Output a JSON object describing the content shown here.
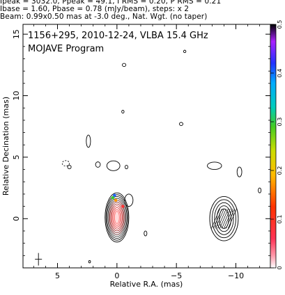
{
  "header": {
    "line1": "Ipeak = 3032.0, Ppeak = 49.1, I RMS = 0.20, P RMS = 0.21",
    "line2": "Ibase = 1.60, Pbase = 0.78 (mJy/beam), steps: x 2",
    "line3": "Beam: 0.99x0.50 mas at -3.0 deg., Nat. Wgt. (no taper)"
  },
  "chart_data": {
    "type": "contour",
    "title": "1156+295, 2010-12-24, VLBA 15.4 GHz",
    "subtitle": "MOJAVE Program",
    "xlabel": "Relative R.A. (mas)",
    "ylabel": "Relative Decination (mas)",
    "xlim": [
      7.9,
      -12.9
    ],
    "ylim": [
      -4.0,
      15.8
    ],
    "x_ticks": [
      5,
      0,
      -5,
      -10
    ],
    "x_tick_labels": [
      "5",
      "0",
      "−5",
      "−10"
    ],
    "y_ticks": [
      0,
      5,
      10,
      15
    ],
    "y_tick_labels": [
      "0",
      "5",
      "10",
      "15"
    ],
    "colorbar": {
      "range": [
        0,
        0.5
      ],
      "ticks": [
        0,
        0.1,
        0.2,
        0.3,
        0.4,
        0.5
      ],
      "tick_labels": [
        "0",
        "0.1",
        "0.2",
        "0.3",
        "0.4",
        "0.5"
      ]
    },
    "core_contours": {
      "center": [
        0.0,
        0.1
      ],
      "radii": [
        [
          1.0,
          2.0
        ],
        [
          0.92,
          1.85
        ],
        [
          0.84,
          1.7
        ],
        [
          0.76,
          1.55
        ],
        [
          0.68,
          1.4
        ],
        [
          0.6,
          1.25
        ],
        [
          0.52,
          1.1
        ],
        [
          0.44,
          0.95
        ],
        [
          0.36,
          0.8
        ],
        [
          0.28,
          0.65
        ],
        [
          0.2,
          0.5
        ]
      ]
    },
    "jet_contours": {
      "center": [
        -9.0,
        0.0
      ],
      "radii": [
        [
          1.2,
          1.8
        ],
        [
          1.0,
          1.55
        ],
        [
          0.8,
          1.3
        ],
        [
          0.6,
          1.05
        ],
        [
          0.4,
          0.8
        ]
      ]
    },
    "small_contours": [
      {
        "x": 0.3,
        "y": 4.3,
        "rx": 0.55,
        "ry": 0.4,
        "dashed": false
      },
      {
        "x": -1.0,
        "y": 1.5,
        "rx": 0.35,
        "ry": 0.5,
        "dashed": false
      },
      {
        "x": 2.4,
        "y": 6.3,
        "rx": 0.18,
        "ry": 0.5,
        "dashed": false
      },
      {
        "x": 1.6,
        "y": 4.4,
        "rx": 0.2,
        "ry": 0.22,
        "dashed": false
      },
      {
        "x": 4.3,
        "y": 4.5,
        "rx": 0.3,
        "ry": 0.22,
        "dashed": true
      },
      {
        "x": -0.5,
        "y": 8.7,
        "rx": 0.1,
        "ry": 0.12,
        "dashed": false
      },
      {
        "x": -0.6,
        "y": 12.5,
        "rx": 0.15,
        "ry": 0.13,
        "dashed": false
      },
      {
        "x": -5.4,
        "y": 7.7,
        "rx": 0.15,
        "ry": 0.13,
        "dashed": false
      },
      {
        "x": -5.7,
        "y": 13.6,
        "rx": 0.1,
        "ry": 0.1,
        "dashed": false
      },
      {
        "x": -0.8,
        "y": 4.2,
        "rx": 0.12,
        "ry": 0.15,
        "dashed": false
      },
      {
        "x": -2.4,
        "y": -1.2,
        "rx": 0.12,
        "ry": 0.2,
        "dashed": false
      },
      {
        "x": -8.2,
        "y": 4.3,
        "rx": 0.6,
        "ry": 0.3,
        "dashed": false
      },
      {
        "x": -10.3,
        "y": 3.8,
        "rx": 0.2,
        "ry": 0.4,
        "dashed": false
      },
      {
        "x": -12.0,
        "y": 2.3,
        "rx": 0.12,
        "ry": 0.2,
        "dashed": false
      },
      {
        "x": 4.0,
        "y": 4.2,
        "rx": 0.15,
        "ry": 0.15,
        "dashed": false
      },
      {
        "x": 2.3,
        "y": -3.5,
        "rx": 0.08,
        "ry": 0.1,
        "dashed": false
      }
    ],
    "cross": {
      "x": 6.6,
      "y": -3.3
    },
    "pol_points": [
      {
        "x": 0.2,
        "y": 1.9,
        "color": "#2266ff"
      },
      {
        "x": 0.35,
        "y": 1.7,
        "color": "#33cc33"
      },
      {
        "x": 0.1,
        "y": 1.5,
        "color": "#ff9900"
      },
      {
        "x": -0.5,
        "y": 1.0,
        "color": "#ff3333"
      }
    ]
  }
}
